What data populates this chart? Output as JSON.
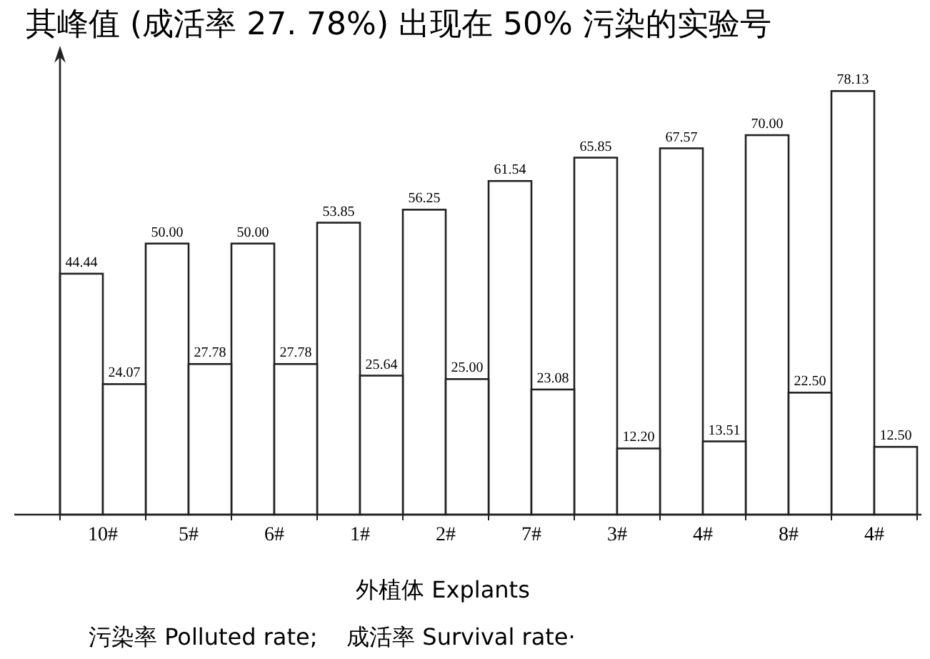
{
  "chart_data": {
    "type": "bar",
    "categories": [
      "10#",
      "5#",
      "6#",
      "1#",
      "2#",
      "7#",
      "3#",
      "4#",
      "8#",
      "4#"
    ],
    "series": [
      {
        "color": "#ffffff",
        "values": [
          44.44,
          50.0,
          50.0,
          53.85,
          56.25,
          61.54,
          65.85,
          67.57,
          70.0,
          78.13
        ],
        "value_labels": [
          "44.44",
          "50.00",
          "50.00",
          "53.85",
          "56.25",
          "61.54",
          "65.85",
          "67.57",
          "70.00",
          "78.13"
        ]
      },
      {
        "color": "#ffffff",
        "values": [
          24.07,
          27.78,
          27.78,
          25.64,
          25.0,
          23.08,
          12.2,
          13.51,
          22.5,
          12.5
        ],
        "value_labels": [
          "24.07",
          "27.78",
          "27.78",
          "25.64",
          "25.00",
          "23.08",
          "12.20",
          "13.51",
          "22.50",
          "12.50"
        ]
      }
    ],
    "tick_labels": "x",
    "xlabel": "外植体 Explants",
    "annotations": [
      "其峰值 (成活率 27. 78%) 出现在 50% 污染的实验号",
      "污染率 Polluted rate;    成活率 Survival rate·"
    ]
  }
}
